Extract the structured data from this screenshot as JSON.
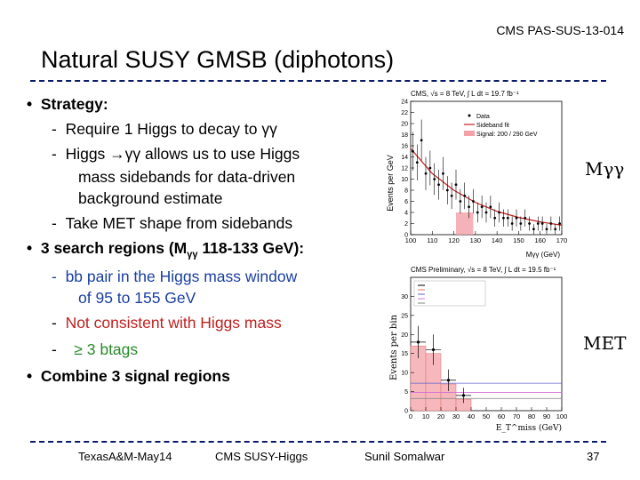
{
  "header": {
    "reference": "CMS PAS-SUS-13-014",
    "title": "Natural SUSY GMSB (diphotons)"
  },
  "bullets": {
    "strategy": "Strategy:",
    "s1": "Require 1 Higgs to decay to γγ",
    "s2a": "Higgs ",
    "s2b": "γγ allows us to use Higgs",
    "s2c": "mass sidebands for data-driven",
    "s2d": "background estimate",
    "s3": "Take MET shape from sidebands",
    "regions_a": "3 search regions (M",
    "regions_sub": "γγ",
    "regions_b": " 118-133 GeV):",
    "r1a": "bb pair in the Higgs mass window",
    "r1b": "of 95 to 155 GeV",
    "r2": "Not consistent with Higgs mass",
    "r3": "≥ 3 btags",
    "combine": "Combine 3 signal regions"
  },
  "plot_top": {
    "header": "CMS, √s = 8 TeV, ∫ L dt = 19.7 fb⁻¹",
    "ylabel": "Events per GeV",
    "xlabel": "Mγγ (GeV)",
    "legend": [
      "Data",
      "Sideband fit",
      "Signal: 200 / 290 GeV"
    ],
    "side_label": "Mγγ"
  },
  "plot_bottom": {
    "header": "CMS Preliminary, √s = 8 TeV, ∫ L dt = 19.5 fb⁻¹",
    "ylabel": "Events per bin",
    "xlabel": "E_T^miss (GeV)",
    "side_label": "MET"
  },
  "footer": {
    "left": "TexasA&M-May14",
    "center": "CMS SUSY-Higgs",
    "right": "Sunil Somalwar",
    "page": "37"
  },
  "colors": {
    "rule": "#0a1a66",
    "green": "#2a8a2a",
    "blue": "#1a3fa0",
    "red": "#c02020"
  },
  "chart_data": [
    {
      "type": "scatter",
      "title": "",
      "xlabel": "Mγγ (GeV)",
      "ylabel": "Events per GeV",
      "xlim": [
        100,
        170
      ],
      "ylim": [
        0,
        24
      ],
      "x_ticks": [
        100,
        110,
        120,
        130,
        140,
        150,
        160,
        170
      ],
      "y_ticks": [
        0,
        2,
        4,
        6,
        8,
        10,
        12,
        14,
        16,
        18,
        20,
        22,
        24
      ],
      "series": [
        {
          "name": "Data",
          "x": [
            101,
            103,
            105,
            107,
            109,
            111,
            113,
            115,
            117,
            119,
            121,
            123,
            125,
            127,
            129,
            131,
            133,
            135,
            137,
            139,
            141,
            143,
            145,
            147,
            149,
            151,
            153,
            155,
            157,
            159,
            161,
            163,
            165,
            167,
            169
          ],
          "y": [
            15,
            13,
            17,
            11,
            12,
            10,
            9,
            11,
            8,
            7,
            9,
            6,
            7,
            5,
            6,
            4,
            5,
            4,
            5,
            3,
            4,
            3,
            3,
            2,
            3,
            2,
            3,
            2,
            1,
            2,
            2,
            1,
            2,
            1,
            2
          ]
        },
        {
          "name": "Sideband fit",
          "x": [
            100,
            110,
            120,
            130,
            140,
            150,
            160,
            170
          ],
          "y": [
            15.5,
            11,
            8,
            5.8,
            4.2,
            3.1,
            2.3,
            1.7
          ]
        }
      ]
    },
    {
      "type": "bar",
      "title": "",
      "xlabel": "E_T^miss (GeV)",
      "ylabel": "Events per bin",
      "xlim": [
        0,
        100
      ],
      "ylim": [
        0,
        35
      ],
      "x_ticks": [
        0,
        10,
        20,
        30,
        40,
        50,
        60,
        70,
        80,
        90,
        100
      ],
      "y_ticks": [
        0,
        5,
        10,
        15,
        20,
        25,
        30
      ],
      "series": [
        {
          "name": "Data",
          "x": [
            5,
            15,
            25,
            35
          ],
          "y": [
            18,
            16,
            8,
            4
          ]
        },
        {
          "name": "Data Driven Background",
          "x": [
            5,
            15,
            25,
            35
          ],
          "y": [
            17,
            15,
            7,
            3
          ]
        }
      ]
    }
  ]
}
